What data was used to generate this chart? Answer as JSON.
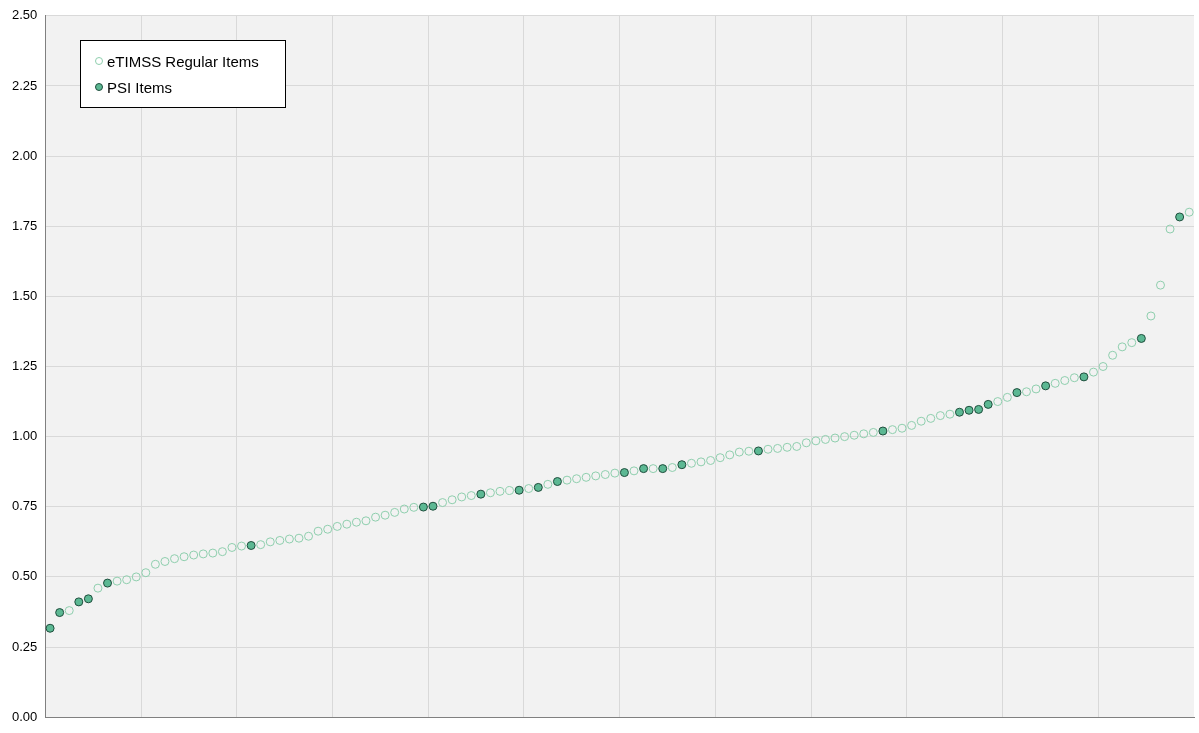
{
  "chart_data": {
    "type": "scatter",
    "categories": [
      null,
      null,
      null,
      null,
      null,
      null,
      null,
      null,
      null,
      null,
      null,
      null,
      null,
      null,
      null,
      null,
      null,
      null,
      null,
      null,
      null,
      null,
      null,
      null,
      null,
      null,
      null,
      null,
      null,
      null,
      null,
      null,
      null,
      null,
      null,
      null,
      null,
      null,
      null,
      null,
      null,
      null,
      null,
      null,
      null,
      null,
      null,
      null,
      null,
      null,
      null,
      null,
      null,
      null,
      null,
      null,
      null,
      null,
      null,
      null,
      null,
      null,
      null,
      null,
      null,
      null,
      null,
      null,
      null,
      null,
      null,
      null,
      null,
      null,
      null,
      null,
      null,
      null,
      null,
      null,
      null,
      null,
      null,
      null,
      null,
      null,
      null,
      null,
      null,
      null,
      null,
      null,
      null,
      null,
      null,
      null,
      null,
      null,
      null,
      null,
      null,
      null,
      null,
      null,
      null,
      null,
      null,
      null,
      null,
      null,
      null,
      null,
      null,
      null,
      null,
      null,
      null,
      null,
      null,
      null
    ],
    "series": [
      {
        "name": "eTIMSS Regular Items",
        "color": "#8fcfae",
        "values": [
          null,
          null,
          0.38,
          null,
          null,
          0.46,
          null,
          0.485,
          0.49,
          0.5,
          0.515,
          0.545,
          0.555,
          0.565,
          0.572,
          0.578,
          0.582,
          0.585,
          0.59,
          0.605,
          0.61,
          null,
          0.615,
          0.625,
          0.63,
          0.635,
          0.638,
          0.645,
          0.663,
          0.67,
          0.68,
          0.688,
          0.695,
          0.7,
          0.713,
          0.72,
          0.73,
          0.742,
          0.748,
          null,
          null,
          0.765,
          0.775,
          0.785,
          0.79,
          null,
          0.8,
          0.805,
          0.808,
          null,
          0.815,
          null,
          0.83,
          null,
          0.845,
          0.85,
          0.855,
          0.86,
          0.865,
          0.87,
          null,
          0.878,
          null,
          0.886,
          null,
          0.89,
          null,
          0.905,
          0.91,
          0.915,
          0.925,
          0.935,
          0.945,
          0.948,
          null,
          0.955,
          0.958,
          0.962,
          0.965,
          0.978,
          0.985,
          0.99,
          0.995,
          1.0,
          1.005,
          1.01,
          1.015,
          null,
          1.025,
          1.03,
          1.04,
          1.055,
          1.065,
          1.075,
          1.08,
          null,
          null,
          null,
          null,
          1.125,
          1.14,
          null,
          1.16,
          1.17,
          null,
          1.19,
          1.2,
          1.21,
          null,
          1.23,
          1.25,
          1.29,
          1.32,
          1.335,
          null,
          1.43,
          1.54,
          1.74,
          null,
          1.8
        ]
      },
      {
        "name": "PSI Items",
        "color": "#5cb893",
        "values": [
          0.317,
          0.373,
          null,
          0.411,
          0.422,
          null,
          0.478,
          null,
          null,
          null,
          null,
          null,
          null,
          null,
          null,
          null,
          null,
          null,
          null,
          null,
          null,
          0.612,
          null,
          null,
          null,
          null,
          null,
          null,
          null,
          null,
          null,
          null,
          null,
          null,
          null,
          null,
          null,
          null,
          null,
          0.749,
          0.752,
          null,
          null,
          null,
          null,
          0.795,
          null,
          null,
          null,
          0.809,
          null,
          0.819,
          null,
          0.84,
          null,
          null,
          null,
          null,
          null,
          null,
          0.872,
          null,
          0.886,
          null,
          0.886,
          null,
          0.9,
          null,
          null,
          null,
          null,
          null,
          null,
          null,
          0.949,
          null,
          null,
          null,
          null,
          null,
          null,
          null,
          null,
          null,
          null,
          null,
          null,
          1.02,
          null,
          null,
          null,
          null,
          null,
          null,
          null,
          1.087,
          1.094,
          1.097,
          1.115,
          null,
          null,
          1.157,
          null,
          null,
          1.181,
          null,
          null,
          null,
          1.213,
          null,
          null,
          null,
          null,
          null,
          1.35,
          null,
          null,
          null,
          1.783,
          null
        ]
      }
    ],
    "ylim": [
      0,
      2.5
    ],
    "yticks": [
      {
        "value": 0,
        "label": "0.00"
      },
      {
        "value": 0.25,
        "label": "0.25"
      },
      {
        "value": 0.5,
        "label": "0.50"
      },
      {
        "value": 0.75,
        "label": "0.75"
      },
      {
        "value": 1,
        "label": "1.00"
      },
      {
        "value": 1.25,
        "label": "1.25"
      },
      {
        "value": 1.5,
        "label": "1.50"
      },
      {
        "value": 1.75,
        "label": "1.75"
      },
      {
        "value": 2,
        "label": "2.00"
      },
      {
        "value": 2.25,
        "label": "2.25"
      },
      {
        "value": 2.5,
        "label": "2.50"
      }
    ],
    "tick_labels": "y",
    "grid": true,
    "legend": "top left",
    "marker": "circle"
  }
}
